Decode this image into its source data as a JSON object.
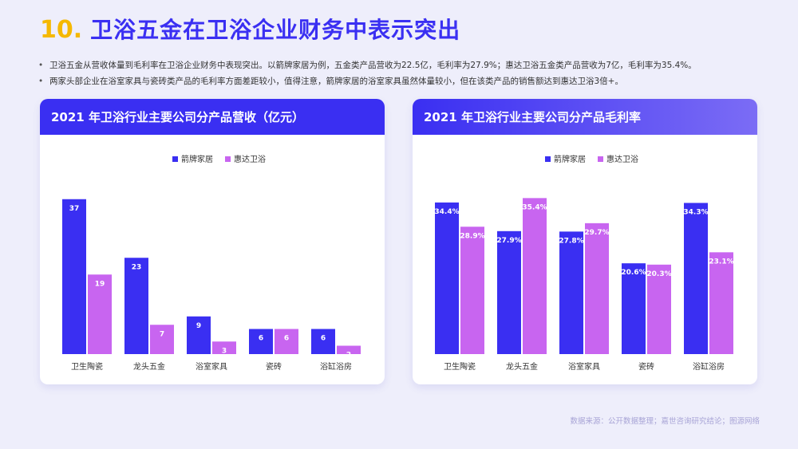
{
  "header": {
    "number": "10.",
    "title": "卫浴五金在卫浴企业财务中表示突出"
  },
  "bullets": [
    "卫浴五金从营收体量到毛利率在卫浴企业财务中表现突出。以箭牌家居为例，五金类产品营收为22.5亿，毛利率为27.9%；惠达卫浴五金类产品营收为7亿，毛利率为35.4%。",
    "两家头部企业在浴室家具与瓷砖类产品的毛利率方面差距较小，值得注意，箭牌家居的浴室家具虽然体量较小，但在该类产品的销售额达到惠达卫浴3倍+。"
  ],
  "footer": "数据来源：公开数据整理；嘉世咨询研究结论；图源网络",
  "colors": {
    "series1": "#3a2ff2",
    "series2": "#c865f0"
  },
  "chart_data": [
    {
      "type": "bar",
      "title": "2021 年卫浴行业主要公司分产品营收（亿元）",
      "categories": [
        "卫生陶瓷",
        "龙头五金",
        "浴室家具",
        "瓷砖",
        "浴缸浴房"
      ],
      "series": [
        {
          "name": "箭牌家居",
          "values": [
            37,
            23,
            9,
            6,
            6
          ]
        },
        {
          "name": "惠达卫浴",
          "values": [
            19,
            7,
            3,
            6,
            2
          ]
        }
      ],
      "labels": [
        [
          "37",
          "23",
          "9",
          "6",
          "6"
        ],
        [
          "19",
          "7",
          "3",
          "6",
          "2"
        ]
      ],
      "ylim": [
        0,
        40
      ],
      "legend": "top-center",
      "grid": false
    },
    {
      "type": "bar",
      "title": "2021 年卫浴行业主要公司分产品毛利率",
      "categories": [
        "卫生陶瓷",
        "龙头五金",
        "浴室家具",
        "瓷砖",
        "浴缸浴房"
      ],
      "series": [
        {
          "name": "箭牌家居",
          "values": [
            34.4,
            27.9,
            27.8,
            20.6,
            34.3
          ]
        },
        {
          "name": "惠达卫浴",
          "values": [
            28.9,
            35.4,
            29.7,
            20.3,
            23.1
          ]
        }
      ],
      "labels": [
        [
          "34.4%",
          "27.9%",
          "27.8%",
          "20.6%",
          "34.3%"
        ],
        [
          "28.9%",
          "35.4%",
          "29.7%",
          "20.3%",
          "23.1%"
        ]
      ],
      "ylim": [
        0,
        38
      ],
      "legend": "top-center",
      "grid": false
    }
  ]
}
